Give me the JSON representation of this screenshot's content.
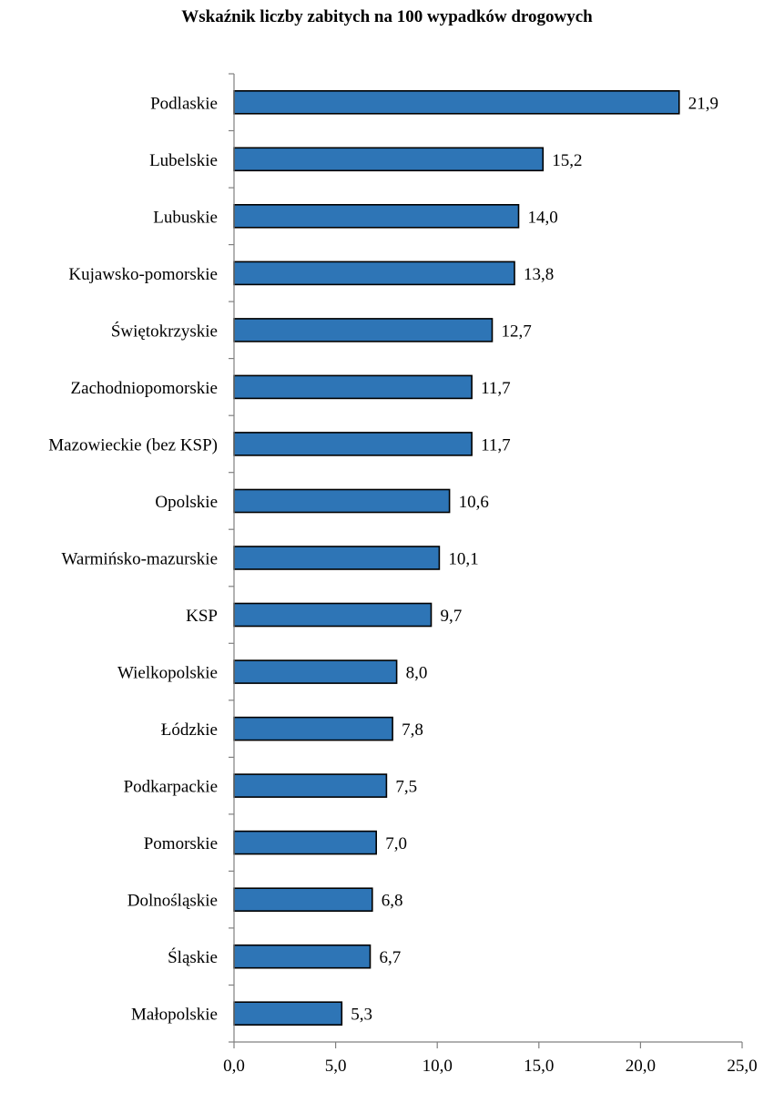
{
  "chart_data": {
    "type": "bar",
    "orientation": "horizontal",
    "title": "Wskaźnik liczby zabitych na 100 wypadków drogowych",
    "categories": [
      "Podlaskie",
      "Lubelskie",
      "Lubuskie",
      "Kujawsko-pomorskie",
      "Świętokrzyskie",
      "Zachodniopomorskie",
      "Mazowieckie (bez KSP)",
      "Opolskie",
      "Warmińsko-mazurskie",
      "KSP",
      "Wielkopolskie",
      "Łódzkie",
      "Podkarpackie",
      "Pomorskie",
      "Dolnośląskie",
      "Śląskie",
      "Małopolskie"
    ],
    "values": [
      21.9,
      15.2,
      14.0,
      13.8,
      12.7,
      11.7,
      11.7,
      10.6,
      10.1,
      9.7,
      8.0,
      7.8,
      7.5,
      7.0,
      6.8,
      6.7,
      5.3
    ],
    "value_labels": [
      "21,9",
      "15,2",
      "14,0",
      "13,8",
      "12,7",
      "11,7",
      "11,7",
      "10,6",
      "10,1",
      "9,7",
      "8,0",
      "7,8",
      "7,5",
      "7,0",
      "6,8",
      "6,7",
      "5,3"
    ],
    "xlim": [
      0,
      25
    ],
    "x_ticks": [
      0,
      5,
      10,
      15,
      20,
      25
    ],
    "x_tick_labels": [
      "0,0",
      "5,0",
      "10,0",
      "15,0",
      "20,0",
      "25,0"
    ],
    "xlabel": "",
    "ylabel": "",
    "grid": false,
    "legend": "none",
    "bar_color": "#2E75B6",
    "bar_edge_color": "#000000"
  }
}
